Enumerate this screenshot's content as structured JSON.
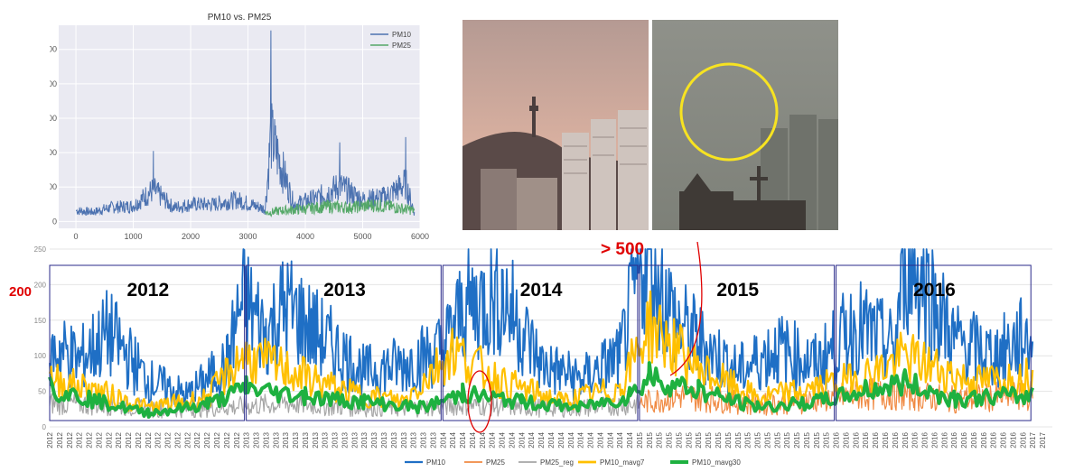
{
  "chart_data": [
    {
      "type": "line",
      "title": "PM10 vs. PM25",
      "xlabel": "",
      "ylabel": "",
      "xlim": [
        -300,
        6000
      ],
      "ylim": [
        -20,
        570
      ],
      "x_ticks": [
        "0",
        "1000",
        "2000",
        "3000",
        "4000",
        "5000",
        "6000"
      ],
      "x_tick_values": [
        0,
        1000,
        2000,
        3000,
        4000,
        5000,
        6000
      ],
      "y_ticks": [
        "0",
        "100",
        "200",
        "300",
        "400",
        "500"
      ],
      "y_tick_values": [
        0,
        100,
        200,
        300,
        400,
        500
      ],
      "grid": true,
      "legend_position": "top-right",
      "series": [
        {
          "name": "PM10",
          "color": "#4c72b0",
          "x": [
            0,
            300,
            600,
            1000,
            1350,
            1700,
            2000,
            2400,
            2800,
            3300,
            3400,
            3800,
            4200,
            4600,
            5000,
            5400,
            5750,
            5900
          ],
          "y": [
            70,
            60,
            90,
            100,
            205,
            90,
            110,
            110,
            140,
            80,
            555,
            110,
            150,
            230,
            140,
            160,
            245,
            60
          ]
        },
        {
          "name": "PM25",
          "color": "#55a868",
          "x": [
            3300,
            3600,
            4000,
            4400,
            4800,
            5200,
            5600,
            5900
          ],
          "y": [
            30,
            40,
            45,
            55,
            50,
            60,
            50,
            40
          ]
        }
      ]
    },
    {
      "type": "line",
      "title": "",
      "xlabel": "",
      "ylabel": "",
      "xlim": [
        2012.0,
        2017.1
      ],
      "ylim": [
        0,
        250
      ],
      "y_ticks": [
        "0",
        "50",
        "100",
        "150",
        "200",
        "250"
      ],
      "y_tick_values": [
        0,
        50,
        100,
        150,
        200,
        250
      ],
      "x_tick_years": [
        2012,
        2013,
        2014,
        2015,
        2016,
        2017
      ],
      "ticks_per_year": 20,
      "year_boxes": [
        {
          "label": "2012",
          "start": 2012.0,
          "end": 2013.0
        },
        {
          "label": "2013",
          "start": 2013.0,
          "end": 2014.0
        },
        {
          "label": "2014",
          "start": 2014.0,
          "end": 2015.0
        },
        {
          "label": "2015",
          "start": 2015.0,
          "end": 2016.0
        },
        {
          "label": "2016",
          "start": 2016.0,
          "end": 2017.0
        }
      ],
      "annotations": {
        "over": "> 500",
        "level": "200"
      },
      "legend_position": "bottom",
      "series": [
        {
          "name": "PM10",
          "color": "#1f6fc5",
          "width": 1.8,
          "x": [
            2012.0,
            2012.05,
            2012.15,
            2012.3,
            2012.5,
            2012.7,
            2012.9,
            2012.98,
            2013.1,
            2013.2,
            2013.4,
            2013.6,
            2013.8,
            2014.0,
            2014.1,
            2014.3,
            2014.5,
            2014.7,
            2014.9,
            2015.05,
            2015.1,
            2015.2,
            2015.3,
            2015.5,
            2015.7,
            2015.9,
            2016.1,
            2016.3,
            2016.35,
            2016.6,
            2016.8,
            2017.0
          ],
          "y": [
            90,
            100,
            85,
            120,
            60,
            40,
            80,
            165,
            120,
            155,
            110,
            70,
            80,
            100,
            150,
            170,
            80,
            60,
            90,
            250,
            180,
            130,
            110,
            70,
            100,
            80,
            130,
            100,
            230,
            110,
            90,
            120
          ]
        },
        {
          "name": "PM25",
          "color": "#f08a43",
          "width": 1.2,
          "x": [
            2015.0,
            2015.2,
            2015.4,
            2015.6,
            2015.8,
            2016.0,
            2016.2,
            2016.4,
            2016.6,
            2016.8,
            2017.0
          ],
          "y": [
            30,
            40,
            35,
            28,
            32,
            38,
            42,
            40,
            35,
            38,
            40
          ]
        },
        {
          "name": "PM25_reg",
          "color": "#a6a6a6",
          "width": 1.2,
          "x": [
            2012.0,
            2012.3,
            2012.6,
            2012.9,
            2013.2,
            2013.5,
            2013.8,
            2014.1,
            2014.4,
            2014.7,
            2015.0
          ],
          "y": [
            30,
            28,
            22,
            25,
            30,
            26,
            24,
            28,
            25,
            24,
            30
          ]
        },
        {
          "name": "PM10_mavg7",
          "color": "#ffc000",
          "width": 2.2,
          "x": [
            2012.0,
            2012.2,
            2012.5,
            2012.8,
            2012.98,
            2013.2,
            2013.5,
            2013.8,
            2014.05,
            2014.3,
            2014.6,
            2014.9,
            2015.05,
            2015.3,
            2015.6,
            2015.9,
            2016.2,
            2016.35,
            2016.7,
            2017.0
          ],
          "y": [
            75,
            60,
            30,
            45,
            110,
            90,
            55,
            40,
            120,
            70,
            40,
            60,
            160,
            90,
            45,
            60,
            85,
            110,
            70,
            80
          ]
        },
        {
          "name": "PM10_mavg30",
          "color": "#1eb140",
          "width": 4,
          "x": [
            2012.0,
            2012.2,
            2012.5,
            2012.8,
            2013.0,
            2013.3,
            2013.6,
            2013.9,
            2014.1,
            2014.4,
            2014.7,
            2014.95,
            2015.05,
            2015.3,
            2015.6,
            2015.9,
            2016.15,
            2016.35,
            2016.6,
            2016.85,
            2017.0
          ],
          "y": [
            70,
            50,
            25,
            40,
            70,
            55,
            45,
            35,
            60,
            45,
            35,
            55,
            90,
            65,
            35,
            45,
            65,
            80,
            50,
            55,
            55
          ]
        }
      ]
    }
  ]
}
